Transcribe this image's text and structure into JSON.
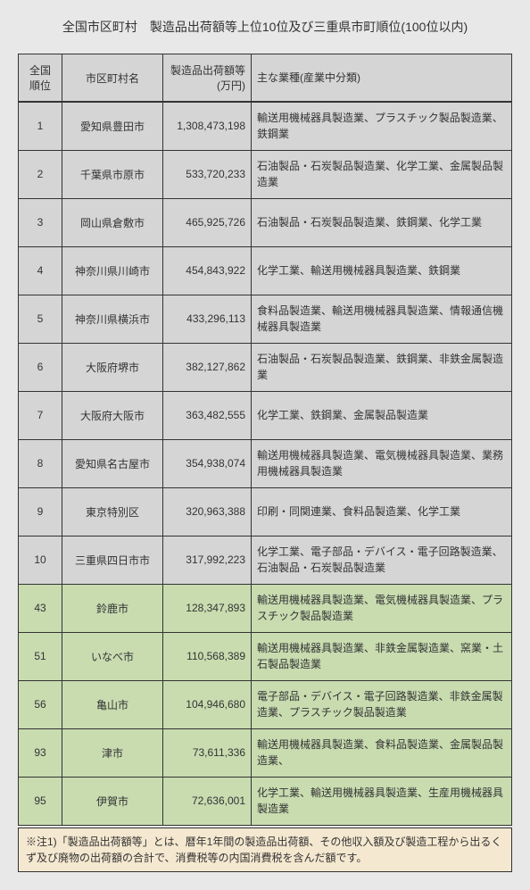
{
  "title": "全国市区町村　製造品出荷額等上位10位及び三重県市町順位(100位以内)",
  "columns": {
    "rank": "全国\n順位",
    "city": "市区町村名",
    "amount": "製造品出荷額等(万円)",
    "industry": "主な業種(産業中分類)"
  },
  "rows": [
    {
      "rank": "1",
      "city": "愛知県豊田市",
      "amount": "1,308,473,198",
      "industry": "輸送用機械器具製造業、プラスチック製品製造業、鉄鋼業",
      "class": "gray-row"
    },
    {
      "rank": "2",
      "city": "千葉県市原市",
      "amount": "533,720,233",
      "industry": "石油製品・石炭製品製造業、化学工業、金属製品製造業",
      "class": "gray-row"
    },
    {
      "rank": "3",
      "city": "岡山県倉敷市",
      "amount": "465,925,726",
      "industry": "石油製品・石炭製品製造業、鉄鋼業、化学工業",
      "class": "gray-row"
    },
    {
      "rank": "4",
      "city": "神奈川県川崎市",
      "amount": "454,843,922",
      "industry": "化学工業、輸送用機械器具製造業、鉄鋼業",
      "class": "gray-row"
    },
    {
      "rank": "5",
      "city": "神奈川県横浜市",
      "amount": "433,296,113",
      "industry": "食料品製造業、輸送用機械器具製造業、情報通信機械器具製造業",
      "class": "gray-row"
    },
    {
      "rank": "6",
      "city": "大阪府堺市",
      "amount": "382,127,862",
      "industry": "石油製品・石炭製品製造業、鉄鋼業、非鉄金属製造業",
      "class": "gray-row"
    },
    {
      "rank": "7",
      "city": "大阪府大阪市",
      "amount": "363,482,555",
      "industry": "化学工業、鉄鋼業、金属製品製造業",
      "class": "gray-row"
    },
    {
      "rank": "8",
      "city": "愛知県名古屋市",
      "amount": "354,938,074",
      "industry": "輸送用機械器具製造業、電気機械器具製造業、業務用機械器具製造業",
      "class": "gray-row"
    },
    {
      "rank": "9",
      "city": "東京特別区",
      "amount": "320,963,388",
      "industry": "印刷・同関連業、食料品製造業、化学工業",
      "class": "gray-row"
    },
    {
      "rank": "10",
      "city": "三重県四日市市",
      "amount": "317,992,223",
      "industry": "化学工業、電子部品・デバイス・電子回路製造業、石油製品・石炭製品製造業",
      "class": "gray-row"
    },
    {
      "rank": "43",
      "city": "鈴鹿市",
      "amount": "128,347,893",
      "industry": "輸送用機械器具製造業、電気機械器具製造業、プラスチック製品製造業",
      "class": "green-row"
    },
    {
      "rank": "51",
      "city": "いなべ市",
      "amount": "110,568,389",
      "industry": "輸送用機械器具製造業、非鉄金属製造業、窯業・土石製品製造業",
      "class": "green-row"
    },
    {
      "rank": "56",
      "city": "亀山市",
      "amount": "104,946,680",
      "industry": "電子部品・デバイス・電子回路製造業、非鉄金属製造業、プラスチック製品製造業",
      "class": "green-row"
    },
    {
      "rank": "93",
      "city": "津市",
      "amount": "73,611,336",
      "industry": "輸送用機械器具製造業、食料品製造業、金属製品製造業、",
      "class": "green-row"
    },
    {
      "rank": "95",
      "city": "伊賀市",
      "amount": "72,636,001",
      "industry": "化学工業、輸送用機械器具製造業、生産用機械器具製造業",
      "class": "green-row"
    }
  ],
  "note": "※注1)「製造品出荷額等」とは、暦年1年間の製造品出荷額、その他収入額及び製造工程から出るくず及び廃物の出荷額の合計で、消費税等の内国消費税を含んだ額です。"
}
